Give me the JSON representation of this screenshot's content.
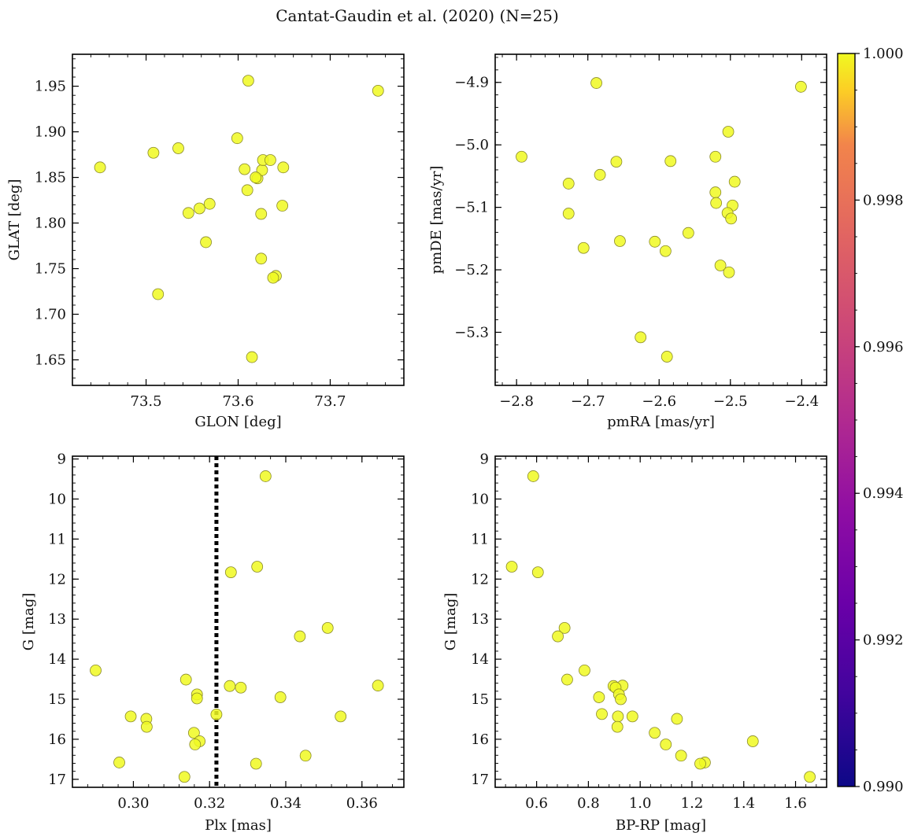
{
  "figure": {
    "title": "Cantat-Gaudin et al. (2020) (N=25)"
  },
  "chart_data": [
    {
      "id": "lonlat",
      "type": "scatter",
      "title": "",
      "xlabel": "GLON [deg]",
      "ylabel": "GLAT [deg]",
      "xlim": [
        73.42,
        73.78
      ],
      "ylim": [
        1.622,
        1.985
      ],
      "xticks": [
        73.5,
        73.6,
        73.7
      ],
      "xtick_labels": [
        "73.5",
        "73.6",
        "73.7"
      ],
      "yticks": [
        1.65,
        1.7,
        1.75,
        1.8,
        1.85,
        1.9,
        1.95
      ],
      "ytick_labels": [
        "1.65",
        "1.70",
        "1.75",
        "1.80",
        "1.85",
        "1.90",
        "1.95"
      ],
      "y_inverted": false,
      "grid": false,
      "points": [
        {
          "x": 73.45,
          "y": 1.861
        },
        {
          "x": 73.508,
          "y": 1.877
        },
        {
          "x": 73.535,
          "y": 1.882
        },
        {
          "x": 73.599,
          "y": 1.893
        },
        {
          "x": 73.611,
          "y": 1.956
        },
        {
          "x": 73.752,
          "y": 1.945
        },
        {
          "x": 73.607,
          "y": 1.859
        },
        {
          "x": 73.621,
          "y": 1.849
        },
        {
          "x": 73.626,
          "y": 1.858
        },
        {
          "x": 73.627,
          "y": 1.869
        },
        {
          "x": 73.635,
          "y": 1.869
        },
        {
          "x": 73.649,
          "y": 1.861
        },
        {
          "x": 73.61,
          "y": 1.836
        },
        {
          "x": 73.569,
          "y": 1.821
        },
        {
          "x": 73.558,
          "y": 1.816
        },
        {
          "x": 73.546,
          "y": 1.811
        },
        {
          "x": 73.625,
          "y": 1.81
        },
        {
          "x": 73.648,
          "y": 1.819
        },
        {
          "x": 73.565,
          "y": 1.779
        },
        {
          "x": 73.625,
          "y": 1.761
        },
        {
          "x": 73.641,
          "y": 1.742
        },
        {
          "x": 73.638,
          "y": 1.74
        },
        {
          "x": 73.513,
          "y": 1.722
        },
        {
          "x": 73.615,
          "y": 1.653
        },
        {
          "x": 73.619,
          "y": 1.85
        }
      ]
    },
    {
      "id": "pm",
      "type": "scatter",
      "title": "",
      "xlabel": "pmRA [mas/yr]",
      "ylabel": "pmDE [mas/yr]",
      "xlim": [
        -2.83,
        -2.365
      ],
      "ylim": [
        -5.385,
        -4.855
      ],
      "xticks": [
        -2.8,
        -2.7,
        -2.6,
        -2.5,
        -2.4
      ],
      "xtick_labels": [
        "−2.8",
        "−2.7",
        "−2.6",
        "−2.5",
        "−2.4"
      ],
      "yticks": [
        -5.3,
        -5.2,
        -5.1,
        -5.0,
        -4.9
      ],
      "ytick_labels": [
        "−5.3",
        "−5.2",
        "−5.1",
        "−5.0",
        "−4.9"
      ],
      "y_inverted": false,
      "grid": false,
      "points": [
        {
          "x": -2.688,
          "y": -4.901
        },
        {
          "x": -2.401,
          "y": -4.907
        },
        {
          "x": -2.503,
          "y": -4.979
        },
        {
          "x": -2.793,
          "y": -5.019
        },
        {
          "x": -2.521,
          "y": -5.019
        },
        {
          "x": -2.66,
          "y": -5.027
        },
        {
          "x": -2.584,
          "y": -5.026
        },
        {
          "x": -2.683,
          "y": -5.048
        },
        {
          "x": -2.727,
          "y": -5.062
        },
        {
          "x": -2.494,
          "y": -5.059
        },
        {
          "x": -2.521,
          "y": -5.076
        },
        {
          "x": -2.52,
          "y": -5.093
        },
        {
          "x": -2.497,
          "y": -5.097
        },
        {
          "x": -2.727,
          "y": -5.11
        },
        {
          "x": -2.504,
          "y": -5.109
        },
        {
          "x": -2.499,
          "y": -5.118
        },
        {
          "x": -2.559,
          "y": -5.141
        },
        {
          "x": -2.655,
          "y": -5.154
        },
        {
          "x": -2.606,
          "y": -5.155
        },
        {
          "x": -2.706,
          "y": -5.165
        },
        {
          "x": -2.591,
          "y": -5.17
        },
        {
          "x": -2.514,
          "y": -5.193
        },
        {
          "x": -2.502,
          "y": -5.204
        },
        {
          "x": -2.626,
          "y": -5.308
        },
        {
          "x": -2.589,
          "y": -5.339
        }
      ]
    },
    {
      "id": "plx",
      "type": "scatter",
      "title": "",
      "xlabel": "Plx [mas]",
      "ylabel": "G [mag]",
      "xlim": [
        0.284,
        0.371
      ],
      "ylim": [
        17.2,
        8.93
      ],
      "xticks": [
        0.3,
        0.32,
        0.34,
        0.36
      ],
      "xtick_labels": [
        "0.30",
        "0.32",
        "0.34",
        "0.36"
      ],
      "yticks": [
        9,
        10,
        11,
        12,
        13,
        14,
        15,
        16,
        17
      ],
      "ytick_labels": [
        "9",
        "10",
        "11",
        "12",
        "13",
        "14",
        "15",
        "16",
        "17"
      ],
      "y_inverted": true,
      "grid": false,
      "vline": {
        "x": 0.3218,
        "style": "dotted"
      },
      "points": [
        {
          "x": 0.3347,
          "y": 9.43
        },
        {
          "x": 0.3325,
          "y": 11.69
        },
        {
          "x": 0.3256,
          "y": 11.83
        },
        {
          "x": 0.351,
          "y": 13.22
        },
        {
          "x": 0.3437,
          "y": 13.43
        },
        {
          "x": 0.2901,
          "y": 14.28
        },
        {
          "x": 0.3138,
          "y": 14.51
        },
        {
          "x": 0.3642,
          "y": 14.66
        },
        {
          "x": 0.3253,
          "y": 14.67
        },
        {
          "x": 0.3282,
          "y": 14.71
        },
        {
          "x": 0.3167,
          "y": 14.88
        },
        {
          "x": 0.3167,
          "y": 14.98
        },
        {
          "x": 0.3386,
          "y": 14.95
        },
        {
          "x": 0.3218,
          "y": 15.38
        },
        {
          "x": 0.2993,
          "y": 15.43
        },
        {
          "x": 0.3544,
          "y": 15.43
        },
        {
          "x": 0.3034,
          "y": 15.49
        },
        {
          "x": 0.3035,
          "y": 15.69
        },
        {
          "x": 0.3159,
          "y": 15.84
        },
        {
          "x": 0.3174,
          "y": 16.05
        },
        {
          "x": 0.3162,
          "y": 16.13
        },
        {
          "x": 0.3452,
          "y": 16.41
        },
        {
          "x": 0.2963,
          "y": 16.58
        },
        {
          "x": 0.3322,
          "y": 16.61
        },
        {
          "x": 0.3134,
          "y": 16.94
        }
      ]
    },
    {
      "id": "cmd",
      "type": "scatter",
      "title": "",
      "xlabel": "BP-RP [mag]",
      "ylabel": "G [mag]",
      "xlim": [
        0.44,
        1.72
      ],
      "ylim": [
        17.2,
        8.93
      ],
      "xticks": [
        0.6,
        0.8,
        1.0,
        1.2,
        1.4,
        1.6
      ],
      "xtick_labels": [
        "0.6",
        "0.8",
        "1.0",
        "1.2",
        "1.4",
        "1.6"
      ],
      "yticks": [
        9,
        10,
        11,
        12,
        13,
        14,
        15,
        16,
        17
      ],
      "ytick_labels": [
        "9",
        "10",
        "11",
        "12",
        "13",
        "14",
        "15",
        "16",
        "17"
      ],
      "y_inverted": true,
      "grid": false,
      "points": [
        {
          "x": 0.587,
          "y": 9.43
        },
        {
          "x": 0.504,
          "y": 11.69
        },
        {
          "x": 0.605,
          "y": 11.83
        },
        {
          "x": 0.708,
          "y": 13.22
        },
        {
          "x": 0.682,
          "y": 13.43
        },
        {
          "x": 0.785,
          "y": 14.28
        },
        {
          "x": 0.718,
          "y": 14.51
        },
        {
          "x": 0.897,
          "y": 14.67
        },
        {
          "x": 0.932,
          "y": 14.66
        },
        {
          "x": 0.905,
          "y": 14.71
        },
        {
          "x": 0.918,
          "y": 14.88
        },
        {
          "x": 0.841,
          "y": 14.95
        },
        {
          "x": 0.925,
          "y": 15.0
        },
        {
          "x": 0.852,
          "y": 15.37
        },
        {
          "x": 0.914,
          "y": 15.43
        },
        {
          "x": 0.97,
          "y": 15.43
        },
        {
          "x": 1.142,
          "y": 15.49
        },
        {
          "x": 0.912,
          "y": 15.69
        },
        {
          "x": 1.056,
          "y": 15.84
        },
        {
          "x": 1.435,
          "y": 16.05
        },
        {
          "x": 1.099,
          "y": 16.13
        },
        {
          "x": 1.158,
          "y": 16.41
        },
        {
          "x": 1.25,
          "y": 16.58
        },
        {
          "x": 1.232,
          "y": 16.61
        },
        {
          "x": 1.655,
          "y": 16.94
        }
      ]
    }
  ],
  "colorbar": {
    "colormap": "plasma",
    "range": [
      0.99,
      1.0
    ],
    "ticks": [
      0.99,
      0.992,
      0.994,
      0.996,
      0.998,
      1.0
    ],
    "tick_labels": [
      "0.990",
      "0.992",
      "0.994",
      "0.996",
      "0.998",
      "1.000"
    ],
    "point_value": 1.0,
    "point_color": "#f0f921"
  }
}
